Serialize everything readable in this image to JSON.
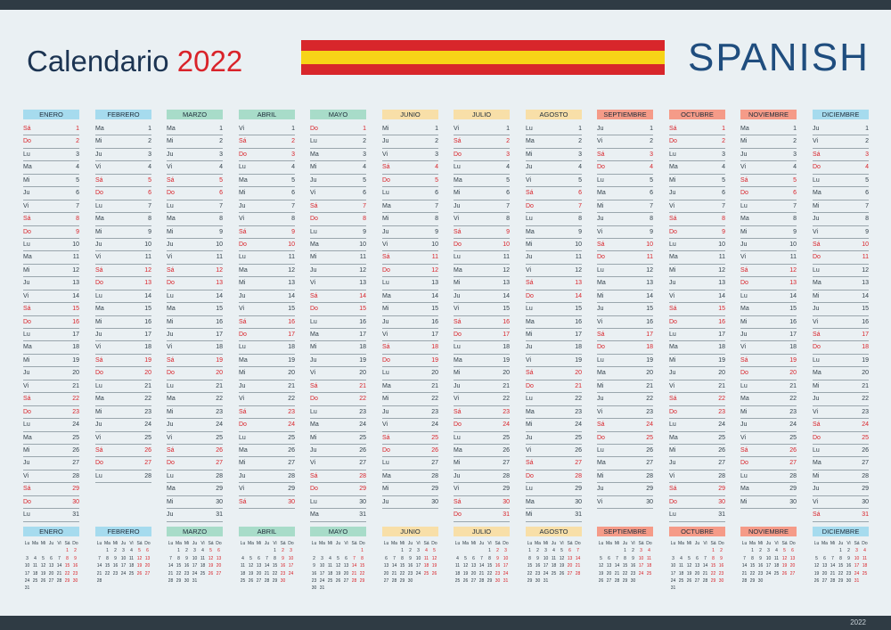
{
  "title": {
    "text": "Calendario",
    "year": "2022"
  },
  "language": "SPANISH",
  "footer_year": "2022",
  "colors": {
    "red": "#d9232a",
    "navy": "#1c3452",
    "blue": "#1f4d7e",
    "flag_red": "#d8262b",
    "flag_yellow": "#f7d417"
  },
  "months": [
    {
      "name": "ENERO",
      "color": "#a6dbee",
      "start": 6,
      "days": 31
    },
    {
      "name": "FEBRERO",
      "color": "#a6dbee",
      "start": 2,
      "days": 28
    },
    {
      "name": "MARZO",
      "color": "#a8dcc9",
      "start": 2,
      "days": 31
    },
    {
      "name": "ABRIL",
      "color": "#a8dcc9",
      "start": 5,
      "days": 30
    },
    {
      "name": "MAYO",
      "color": "#a8dcc9",
      "start": 0,
      "days": 31
    },
    {
      "name": "JUNIO",
      "color": "#f8dfa8",
      "start": 3,
      "days": 30
    },
    {
      "name": "JULIO",
      "color": "#f8dfa8",
      "start": 5,
      "days": 31
    },
    {
      "name": "AGOSTO",
      "color": "#f8dfa8",
      "start": 1,
      "days": 31
    },
    {
      "name": "SEPTIEMBRE",
      "color": "#f59b88",
      "start": 4,
      "days": 30
    },
    {
      "name": "OCTUBRE",
      "color": "#f59b88",
      "start": 6,
      "days": 31
    },
    {
      "name": "NOVIEMBRE",
      "color": "#f59b88",
      "start": 2,
      "days": 30
    },
    {
      "name": "DICIEMBRE",
      "color": "#a6dbee",
      "start": 4,
      "days": 31
    }
  ],
  "weekday_abbr": [
    "Do",
    "Lu",
    "Ma",
    "Mi",
    "Ju",
    "Vi",
    "Sá"
  ],
  "mini_header": [
    "Lu",
    "Ma",
    "Mi",
    "Ju",
    "Vi",
    "Sá",
    "Do"
  ]
}
